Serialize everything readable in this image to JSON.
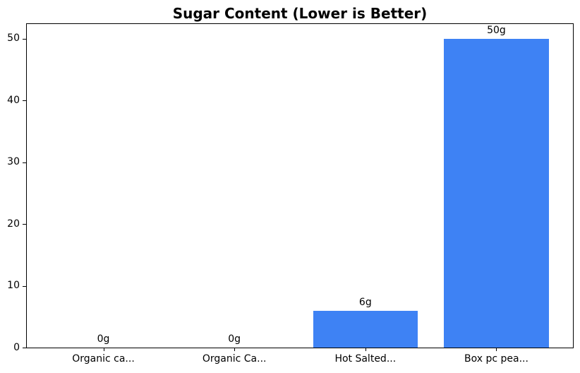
{
  "chart_data": {
    "type": "bar",
    "title": "Sugar Content (Lower is Better)",
    "categories": [
      "Organic ca...",
      "Organic Ca...",
      "Hot Salted...",
      "Box pc pea..."
    ],
    "values": [
      0,
      0,
      6,
      50
    ],
    "value_labels": [
      "0g",
      "0g",
      "6g",
      "50g"
    ],
    "xlabel": "",
    "ylabel": "",
    "ylim": [
      0,
      52.5
    ],
    "yticks": [
      0,
      10,
      20,
      30,
      40,
      50
    ],
    "ytick_labels": [
      "0",
      "10",
      "20",
      "30",
      "40",
      "50"
    ],
    "xlim": [
      -0.59,
      3.59
    ],
    "bar_width_data_units": 0.8,
    "grid": false,
    "legend": null,
    "bar_color": "#3e82f4",
    "axis_color": "#000000",
    "text_color": "#000000",
    "background_color": "#ffffff"
  }
}
